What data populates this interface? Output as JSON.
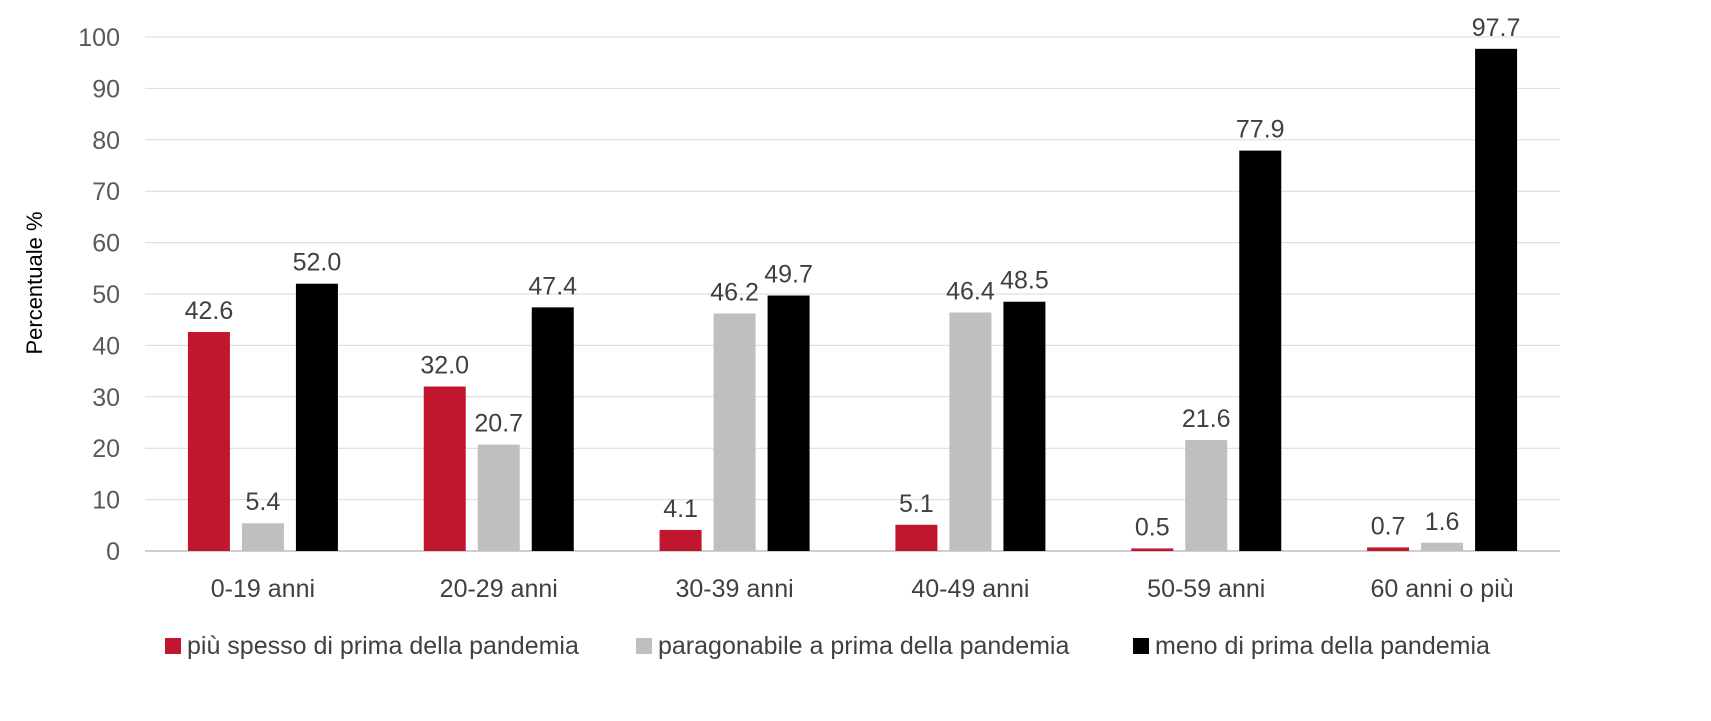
{
  "chart_data": {
    "type": "bar",
    "title": "",
    "ylabel": "Percentuale %",
    "xlabel": "",
    "ylim": [
      0,
      100
    ],
    "yticks": [
      0,
      10,
      20,
      30,
      40,
      50,
      60,
      70,
      80,
      90,
      100
    ],
    "grid": true,
    "legend_position": "bottom",
    "categories": [
      "0-19 anni",
      "20-29 anni",
      "30-39 anni",
      "40-49 anni",
      "50-59 anni",
      "60 anni o più"
    ],
    "series": [
      {
        "name": "più spesso di prima della pandemia",
        "color": "#C0172E",
        "values": [
          42.6,
          32.0,
          4.1,
          5.1,
          0.5,
          0.7
        ],
        "labels": [
          "42.6",
          "32.0",
          "4.1",
          "5.1",
          "0.5",
          "0.7"
        ]
      },
      {
        "name": "paragonabile a prima della pandemia",
        "color": "#BFBFBF",
        "values": [
          5.4,
          20.7,
          46.2,
          46.4,
          21.6,
          1.6
        ],
        "labels": [
          "5.4",
          "20.7",
          "46.2",
          "46.4",
          "21.6",
          "1.6"
        ]
      },
      {
        "name": "meno di prima della pandemia",
        "color": "#000000",
        "values": [
          52.0,
          47.4,
          49.7,
          48.5,
          77.9,
          97.7
        ],
        "labels": [
          "52.0",
          "47.4",
          "49.7",
          "48.5",
          "77.9",
          "97.7"
        ]
      }
    ]
  }
}
